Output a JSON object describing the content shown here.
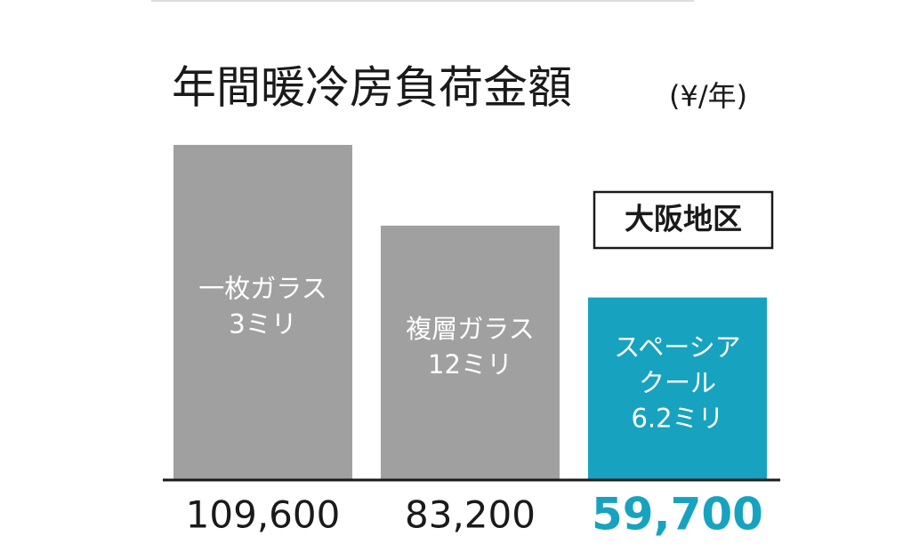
{
  "chart_data": {
    "type": "bar",
    "title": "年間暖冷房負荷金額",
    "unit": "(¥/年)",
    "annotation": "大阪地区",
    "categories": [
      [
        "一枚ガラス",
        "3ミリ"
      ],
      [
        "複層ガラス",
        "12ミリ"
      ],
      [
        "スペーシア",
        "クール",
        "6.2ミリ"
      ]
    ],
    "values": [
      109600,
      83200,
      59700
    ],
    "value_labels": [
      "109,600",
      "83,200",
      "59,700"
    ],
    "colors": [
      "#a0a0a0",
      "#a0a0a0",
      "#17a3bf"
    ],
    "value_label_colors": [
      "#1a1a1a",
      "#1a1a1a",
      "#17a3bf"
    ]
  }
}
